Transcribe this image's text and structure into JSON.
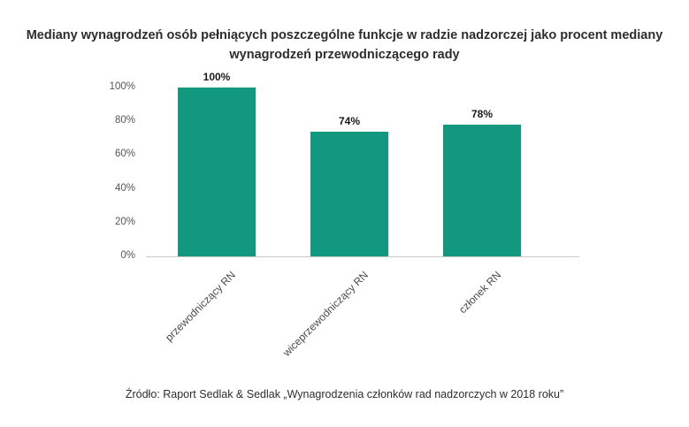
{
  "chart_data": {
    "type": "bar",
    "title": "Mediany wynagrodzeń osób pełniących poszczególne funkcje w radzie nadzorczej jako procent mediany wynagrodzeń przewodniczącego rady",
    "categories": [
      "przewodniczący RN",
      "wiceprzewodniczący RN",
      "członek RN"
    ],
    "values": [
      100,
      74,
      78
    ],
    "value_labels": [
      "100%",
      "74%",
      "78%"
    ],
    "yticks": [
      "0%",
      "20%",
      "40%",
      "60%",
      "80%",
      "100%"
    ],
    "ylim": [
      0,
      100
    ],
    "xlabel": "",
    "ylabel": "",
    "grid": false,
    "legend": "none",
    "bar_color": "#12987f"
  },
  "source": "Źródło: Raport Sedlak & Sedlak „Wynagrodzenia członków rad nadzorczych w 2018 roku”"
}
